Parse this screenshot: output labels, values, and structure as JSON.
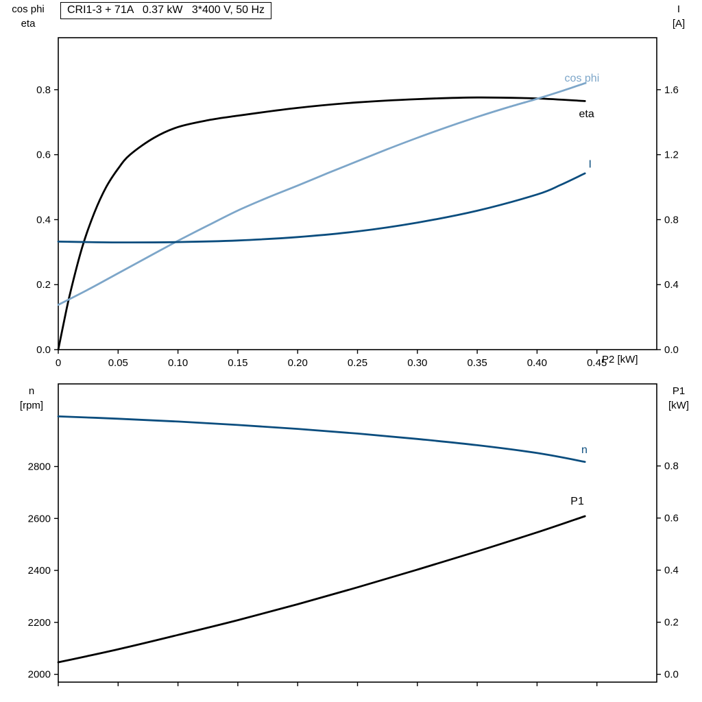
{
  "title": "CRI1-3 + 71A   0.37 kW   3*400 V, 50 Hz",
  "colors": {
    "frame": "#000000",
    "black": "#000000",
    "light_blue": "#7da6c9",
    "dark_blue": "#0b4d7e"
  },
  "chart_data": [
    {
      "type": "line",
      "name": "electrical",
      "x_axis": {
        "label": "P2 [kW]",
        "xlim": [
          0,
          0.5
        ],
        "show_tick_labels": true,
        "ticks": [
          {
            "v": 0,
            "label": "0"
          },
          {
            "v": 0.05,
            "label": "0.05"
          },
          {
            "v": 0.1,
            "label": "0.10"
          },
          {
            "v": 0.15,
            "label": "0.15"
          },
          {
            "v": 0.2,
            "label": "0.20"
          },
          {
            "v": 0.25,
            "label": "0.25"
          },
          {
            "v": 0.3,
            "label": "0.30"
          },
          {
            "v": 0.35,
            "label": "0.35"
          },
          {
            "v": 0.4,
            "label": "0.40"
          },
          {
            "v": 0.45,
            "label": "0.45"
          }
        ]
      },
      "left_axis": {
        "label_lines": [
          "cos phi",
          "eta"
        ],
        "ylim": [
          0,
          0.96
        ],
        "ticks": [
          {
            "v": 0,
            "label": "0.0"
          },
          {
            "v": 0.2,
            "label": "0.2"
          },
          {
            "v": 0.4,
            "label": "0.4"
          },
          {
            "v": 0.6,
            "label": "0.6"
          },
          {
            "v": 0.8,
            "label": "0.8"
          }
        ]
      },
      "right_axis": {
        "label_lines": [
          "I",
          "[A]"
        ],
        "ylim": [
          0,
          1.92
        ],
        "ticks": [
          {
            "v": 0,
            "label": "0.0"
          },
          {
            "v": 0.4,
            "label": "0.4"
          },
          {
            "v": 0.8,
            "label": "0.8"
          },
          {
            "v": 1.2,
            "label": "1.2"
          },
          {
            "v": 1.6,
            "label": "1.6"
          }
        ]
      },
      "series": [
        {
          "name": "eta",
          "label": "eta",
          "axis": "left",
          "color_key": "black",
          "label_anchor": {
            "x": 0.435,
            "y": 0.715
          },
          "points": [
            [
              0,
              0
            ],
            [
              0.005,
              0.09
            ],
            [
              0.01,
              0.175
            ],
            [
              0.02,
              0.315
            ],
            [
              0.03,
              0.42
            ],
            [
              0.04,
              0.5
            ],
            [
              0.05,
              0.557
            ],
            [
              0.06,
              0.6
            ],
            [
              0.08,
              0.652
            ],
            [
              0.1,
              0.685
            ],
            [
              0.125,
              0.706
            ],
            [
              0.15,
              0.72
            ],
            [
              0.2,
              0.744
            ],
            [
              0.25,
              0.761
            ],
            [
              0.3,
              0.771
            ],
            [
              0.35,
              0.776
            ],
            [
              0.4,
              0.773
            ],
            [
              0.44,
              0.765
            ]
          ]
        },
        {
          "name": "cos-phi",
          "label": "cos phi",
          "axis": "left",
          "color_key": "light_blue",
          "label_anchor": {
            "x": 0.423,
            "y": 0.825
          },
          "points": [
            [
              0,
              0.138
            ],
            [
              0.025,
              0.185
            ],
            [
              0.05,
              0.235
            ],
            [
              0.075,
              0.285
            ],
            [
              0.1,
              0.335
            ],
            [
              0.125,
              0.382
            ],
            [
              0.15,
              0.428
            ],
            [
              0.175,
              0.468
            ],
            [
              0.2,
              0.505
            ],
            [
              0.225,
              0.543
            ],
            [
              0.25,
              0.58
            ],
            [
              0.275,
              0.617
            ],
            [
              0.3,
              0.652
            ],
            [
              0.325,
              0.685
            ],
            [
              0.35,
              0.716
            ],
            [
              0.375,
              0.745
            ],
            [
              0.4,
              0.772
            ],
            [
              0.42,
              0.795
            ],
            [
              0.44,
              0.82
            ]
          ]
        },
        {
          "name": "current",
          "label": "I",
          "axis": "right",
          "color_key": "dark_blue",
          "label_anchor": {
            "x": 0.443,
            "y": 1.12
          },
          "points": [
            [
              0,
              0.665
            ],
            [
              0.05,
              0.66
            ],
            [
              0.1,
              0.662
            ],
            [
              0.15,
              0.672
            ],
            [
              0.2,
              0.693
            ],
            [
              0.25,
              0.728
            ],
            [
              0.3,
              0.782
            ],
            [
              0.35,
              0.855
            ],
            [
              0.4,
              0.955
            ],
            [
              0.42,
              1.015
            ],
            [
              0.44,
              1.085
            ]
          ]
        }
      ]
    },
    {
      "type": "line",
      "name": "mechanical",
      "x_axis": {
        "label": "",
        "xlim": [
          0,
          0.5
        ],
        "show_tick_labels": false,
        "ticks": [
          {
            "v": 0,
            "label": ""
          },
          {
            "v": 0.05,
            "label": ""
          },
          {
            "v": 0.1,
            "label": ""
          },
          {
            "v": 0.15,
            "label": ""
          },
          {
            "v": 0.2,
            "label": ""
          },
          {
            "v": 0.25,
            "label": ""
          },
          {
            "v": 0.3,
            "label": ""
          },
          {
            "v": 0.35,
            "label": ""
          },
          {
            "v": 0.4,
            "label": ""
          },
          {
            "v": 0.45,
            "label": ""
          }
        ]
      },
      "left_axis": {
        "label_lines": [
          "n",
          "[rpm]"
        ],
        "ylim": [
          1970,
          3118
        ],
        "ticks": [
          {
            "v": 2000,
            "label": "2000"
          },
          {
            "v": 2200,
            "label": "2200"
          },
          {
            "v": 2400,
            "label": "2400"
          },
          {
            "v": 2600,
            "label": "2600"
          },
          {
            "v": 2800,
            "label": "2800"
          }
        ]
      },
      "right_axis": {
        "label_lines": [
          "P1",
          "[kW]"
        ],
        "ylim": [
          -0.03,
          1.115
        ],
        "ticks": [
          {
            "v": 0,
            "label": "0.0"
          },
          {
            "v": 0.2,
            "label": "0.2"
          },
          {
            "v": 0.4,
            "label": "0.4"
          },
          {
            "v": 0.6,
            "label": "0.6"
          },
          {
            "v": 0.8,
            "label": "0.8"
          }
        ]
      },
      "series": [
        {
          "name": "speed",
          "label": "n",
          "axis": "left",
          "color_key": "dark_blue",
          "label_anchor": {
            "x": 0.437,
            "y": 2852
          },
          "points": [
            [
              0,
              2993
            ],
            [
              0.05,
              2984
            ],
            [
              0.1,
              2973
            ],
            [
              0.15,
              2960
            ],
            [
              0.2,
              2945
            ],
            [
              0.25,
              2927
            ],
            [
              0.3,
              2906
            ],
            [
              0.35,
              2882
            ],
            [
              0.4,
              2852
            ],
            [
              0.44,
              2818
            ]
          ]
        },
        {
          "name": "p1",
          "label": "P1",
          "axis": "right",
          "color_key": "black",
          "label_anchor": {
            "x": 0.428,
            "y": 0.652
          },
          "points": [
            [
              0,
              0.046
            ],
            [
              0.05,
              0.096
            ],
            [
              0.1,
              0.151
            ],
            [
              0.15,
              0.208
            ],
            [
              0.2,
              0.269
            ],
            [
              0.25,
              0.334
            ],
            [
              0.3,
              0.402
            ],
            [
              0.35,
              0.472
            ],
            [
              0.4,
              0.545
            ],
            [
              0.44,
              0.607
            ]
          ]
        }
      ]
    }
  ]
}
